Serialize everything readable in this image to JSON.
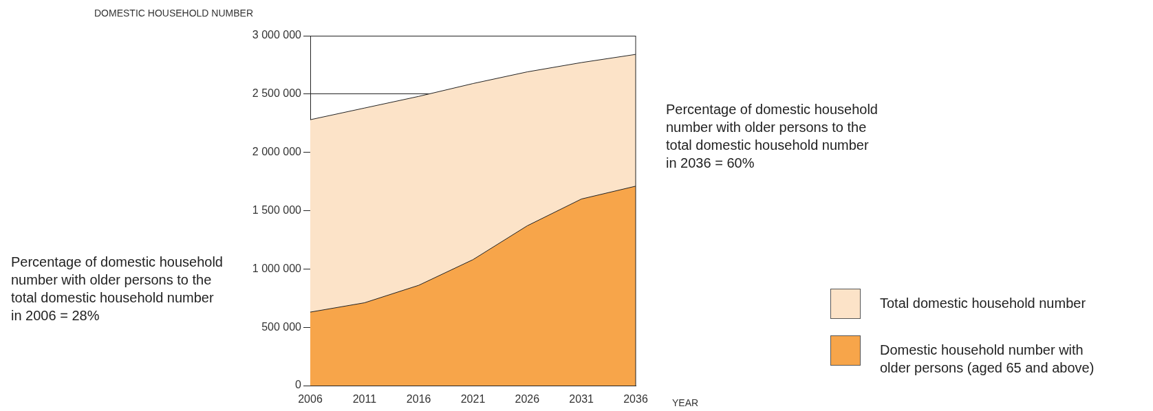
{
  "chart_data": {
    "type": "area",
    "ylabel": "DOMESTIC HOUSEHOLD NUMBER",
    "xlabel": "YEAR",
    "x": [
      2006,
      2011,
      2016,
      2021,
      2026,
      2031,
      2036
    ],
    "xlim": [
      2006,
      2036
    ],
    "xticks": [
      2006,
      2011,
      2016,
      2021,
      2026,
      2031,
      2036
    ],
    "ylim": [
      0,
      3000000
    ],
    "yticks": [
      {
        "value": 0,
        "label": "0"
      },
      {
        "value": 500000,
        "label": "500 000"
      },
      {
        "value": 1000000,
        "label": "1 000 000"
      },
      {
        "value": 1500000,
        "label": "1 500 000"
      },
      {
        "value": 2000000,
        "label": "2 000 000"
      },
      {
        "value": 2500000,
        "label": "2 500 000"
      },
      {
        "value": 3000000,
        "label": "3 000 000"
      }
    ],
    "grid": "y",
    "legend": "right",
    "series": [
      {
        "name": "Total domestic household number",
        "color": "#fce3c8",
        "values": [
          2280000,
          2380000,
          2480000,
          2590000,
          2690000,
          2770000,
          2840000
        ]
      },
      {
        "name": "Domestic household number with older persons (aged 65 and above)",
        "color": "#f7a54a",
        "values": [
          630000,
          710000,
          860000,
          1080000,
          1370000,
          1600000,
          1710000
        ]
      }
    ],
    "annotations": [
      "Percentage of domestic household number with older persons to the total domestic household number in 2006 = 28%",
      "Percentage of domestic household number with older persons to the total domestic household number in 2036 = 60%"
    ]
  }
}
